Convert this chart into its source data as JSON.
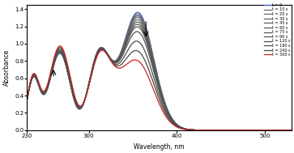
{
  "xlabel": "Wavelength, nm",
  "ylabel": "Absorbance",
  "xlim": [
    230,
    530
  ],
  "ylim": [
    0,
    1.45
  ],
  "yticks": [
    0,
    0.2,
    0.4,
    0.6,
    0.8,
    1.0,
    1.2,
    1.4
  ],
  "xticks": [
    230,
    300,
    400,
    500
  ],
  "legend_labels": [
    "t = 0",
    "t = 10 s",
    "t = 20 s",
    "t = 30 s",
    "t = 45 s",
    "t = 60 s",
    "t = 75 s",
    "t = 90 s",
    "t = 120 s",
    "t = 180 s",
    "t = 240 s",
    "t = 300 s"
  ],
  "background_color": "#ffffff"
}
